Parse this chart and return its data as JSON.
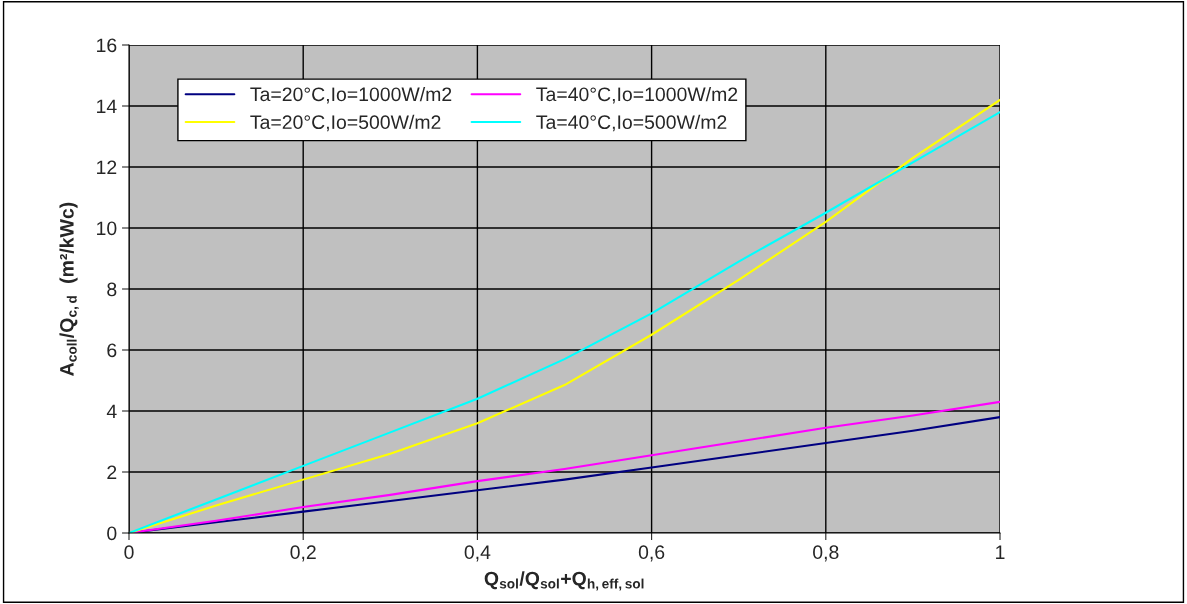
{
  "chart_data": {
    "type": "line",
    "xlabel": "Q$_{sol}$/Q$_{sol}$+Q$_{h,eff,sol}$",
    "ylabel": "A$_{coll}$/Q$_{c,d}$  (m²/kWc)",
    "x": [
      0,
      0.1,
      0.2,
      0.3,
      0.4,
      0.5,
      0.6,
      0.7,
      0.8,
      0.9,
      1
    ],
    "series": [
      {
        "name": "Ta=20°C,Io=1000W/m2",
        "color": "#000080",
        "values": [
          0,
          0.35,
          0.7,
          1.05,
          1.4,
          1.75,
          2.15,
          2.55,
          2.95,
          3.35,
          3.8
        ]
      },
      {
        "name": "Ta=40°C,Io=1000W/m2",
        "color": "#ff00ff",
        "values": [
          0,
          0.4,
          0.85,
          1.25,
          1.7,
          2.1,
          2.55,
          3.0,
          3.45,
          3.85,
          4.3
        ]
      },
      {
        "name": "Ta=20°C,Io=500W/m2",
        "color": "#ffff00",
        "values": [
          0,
          0.9,
          1.75,
          2.6,
          3.6,
          4.85,
          6.5,
          8.3,
          10.2,
          12.3,
          14.2
        ]
      },
      {
        "name": "Ta=40°C,Io=500W/m2",
        "color": "#00ffff",
        "values": [
          0,
          1.1,
          2.2,
          3.3,
          4.4,
          5.7,
          7.2,
          8.9,
          10.5,
          12.15,
          13.8
        ]
      }
    ],
    "xlim": [
      0,
      1
    ],
    "xticks": [
      0,
      {
        "value": 0.2,
        "label": "0,2"
      },
      {
        "value": 0.4,
        "label": "0,4"
      },
      {
        "value": 0.6,
        "label": "0,6"
      },
      {
        "value": 0.8,
        "label": "0,8"
      },
      1
    ],
    "ylim": [
      0,
      16
    ],
    "yticks": [
      0,
      2,
      4,
      6,
      8,
      10,
      12,
      14,
      16
    ],
    "grid": true,
    "legend": "top left",
    "marker": "none",
    "line_style": "solid"
  }
}
